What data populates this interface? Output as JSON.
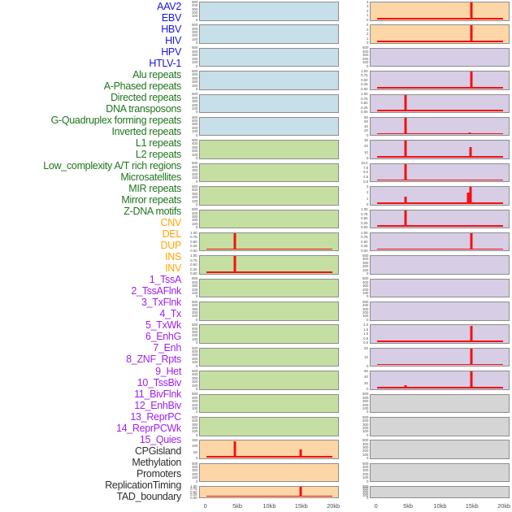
{
  "figure": {
    "colors": {
      "spike": "#f31111",
      "panel_border": "#8d8d8d",
      "tick_text": "#4f4f4f",
      "fills": {
        "virus": "#c7dfe9",
        "repeat": "#c5dfa2",
        "sv": "#fcd6a6",
        "chromatin_state": "#d7cde5",
        "other": "#d5d5d5"
      },
      "label_colors": {
        "virus": "#1a16e3",
        "repeat": "#1e761e",
        "sv": "#ffa500",
        "chromatin_state": "#a020f0",
        "other": "#2e2e2e"
      }
    },
    "default_yticks": [
      "500",
      "400",
      "300",
      "200",
      "100",
      "0"
    ]
  },
  "chart_data": {
    "type": "line",
    "layout": "small_multiples",
    "columns": 2,
    "order": "column_major",
    "x_range_kb": [
      0,
      20
    ],
    "x_ticks": [
      "0",
      "5kb",
      "10kb",
      "15kb",
      "20kb"
    ],
    "grid": false,
    "legend": "none",
    "tracks": [
      {
        "name": "AAV2",
        "group": "virus",
        "column": "left",
        "yticks": null,
        "baseline": false,
        "spikes": []
      },
      {
        "name": "EBV",
        "group": "virus",
        "column": "left",
        "yticks": null,
        "baseline": false,
        "spikes": []
      },
      {
        "name": "HBV",
        "group": "virus",
        "column": "left",
        "yticks": null,
        "baseline": false,
        "spikes": []
      },
      {
        "name": "HIV",
        "group": "virus",
        "column": "left",
        "yticks": null,
        "baseline": false,
        "spikes": []
      },
      {
        "name": "HPV",
        "group": "virus",
        "column": "left",
        "yticks": null,
        "baseline": false,
        "spikes": []
      },
      {
        "name": "HTLV-1",
        "group": "virus",
        "column": "left",
        "yticks": null,
        "baseline": false,
        "spikes": []
      },
      {
        "name": "Alu repeats",
        "group": "repeat",
        "column": "left",
        "yticks": null,
        "baseline": false,
        "spikes": []
      },
      {
        "name": "A-Phased repeats",
        "group": "repeat",
        "column": "left",
        "yticks": null,
        "baseline": false,
        "spikes": []
      },
      {
        "name": "Directed repeats",
        "group": "repeat",
        "column": "left",
        "yticks": null,
        "baseline": false,
        "spikes": []
      },
      {
        "name": "DNA transposons",
        "group": "repeat",
        "column": "left",
        "yticks": null,
        "baseline": false,
        "spikes": []
      },
      {
        "name": "G-Quadruplex forming repeats",
        "group": "repeat",
        "column": "left",
        "yticks": [
          "1.00",
          "0.75",
          "0.50",
          "0.25",
          "0.00"
        ],
        "baseline": true,
        "spikes": [
          {
            "x_kb": 4.6,
            "y": 1.0,
            "h": 1.0
          }
        ]
      },
      {
        "name": "Inverted repeats",
        "group": "repeat",
        "column": "left",
        "yticks": [
          "1.00",
          "0.75",
          "0.50",
          "0.25",
          "0.00"
        ],
        "baseline": true,
        "spikes": [
          {
            "x_kb": 4.6,
            "y": 1.0,
            "h": 1.0
          }
        ]
      },
      {
        "name": "L1 repeats",
        "group": "repeat",
        "column": "left",
        "yticks": null,
        "baseline": false,
        "spikes": []
      },
      {
        "name": "L2 repeats",
        "group": "repeat",
        "column": "left",
        "yticks": null,
        "baseline": false,
        "spikes": []
      },
      {
        "name": "Low_complexity A/T rich regions",
        "group": "repeat",
        "column": "left",
        "yticks": null,
        "baseline": false,
        "spikes": []
      },
      {
        "name": "Microsatellites",
        "group": "repeat",
        "column": "left",
        "yticks": null,
        "baseline": false,
        "spikes": []
      },
      {
        "name": "MIR repeats",
        "group": "repeat",
        "column": "left",
        "yticks": null,
        "baseline": false,
        "spikes": []
      },
      {
        "name": "Mirror repeats",
        "group": "repeat",
        "column": "left",
        "yticks": null,
        "baseline": false,
        "spikes": []
      },
      {
        "name": "Z-DNA motifs",
        "group": "repeat",
        "column": "left",
        "yticks": null,
        "baseline": false,
        "spikes": []
      },
      {
        "name": "CNV",
        "group": "sv",
        "column": "left",
        "yticks": [
          "150",
          "100",
          "50",
          "0"
        ],
        "baseline": true,
        "spikes": [
          {
            "x_kb": 4.6,
            "y": 150,
            "h": 1.0
          },
          {
            "x_kb": 14.9,
            "y": 70,
            "h": 0.47
          }
        ]
      },
      {
        "name": "DEL",
        "group": "sv",
        "column": "left",
        "yticks": null,
        "baseline": false,
        "spikes": []
      },
      {
        "name": "DUP",
        "group": "sv",
        "column": "left",
        "short": true,
        "yticks": [
          "1.00",
          "0.75",
          "0.50",
          "0.25",
          "0.00"
        ],
        "baseline": true,
        "spikes": [
          {
            "x_kb": 15.0,
            "y": 1.0,
            "h": 1.0
          }
        ]
      },
      {
        "name": "INS",
        "group": "sv",
        "column": "right",
        "yticks": [
          "4",
          "3",
          "2",
          "1",
          "0"
        ],
        "baseline": true,
        "spikes": [
          {
            "x_kb": 15.0,
            "y": 4,
            "h": 1.0
          }
        ]
      },
      {
        "name": "INV",
        "group": "sv",
        "column": "right",
        "yticks": [
          "4",
          "3",
          "2",
          "1",
          "0"
        ],
        "baseline": true,
        "spikes": [
          {
            "x_kb": 15.0,
            "y": 4,
            "h": 1.0
          }
        ]
      },
      {
        "name": "1_TssA",
        "group": "chromatin_state",
        "column": "right",
        "yticks": null,
        "baseline": false,
        "spikes": []
      },
      {
        "name": "2_TssAFlnk",
        "group": "chromatin_state",
        "column": "right",
        "yticks": [
          "1.00",
          "0.75",
          "0.50",
          "0.25",
          "0.00"
        ],
        "baseline": true,
        "spikes": [
          {
            "x_kb": 15.0,
            "y": 1.0,
            "h": 1.0
          }
        ]
      },
      {
        "name": "3_TxFlnk",
        "group": "chromatin_state",
        "column": "right",
        "yticks": [
          "1.00",
          "0.75",
          "0.50",
          "0.25",
          "0.00"
        ],
        "baseline": true,
        "spikes": [
          {
            "x_kb": 4.6,
            "y": 1.0,
            "h": 1.0
          }
        ]
      },
      {
        "name": "4_Tx",
        "group": "chromatin_state",
        "column": "right",
        "yticks": [
          "80",
          "60",
          "40",
          "20",
          "0"
        ],
        "baseline": true,
        "spikes": [
          {
            "x_kb": 4.6,
            "y": 80,
            "h": 1.0
          },
          {
            "x_kb": 14.7,
            "y": 8,
            "h": 0.1
          }
        ]
      },
      {
        "name": "5_TxWk",
        "group": "chromatin_state",
        "column": "right",
        "yticks": [
          "30",
          "20",
          "10",
          "0"
        ],
        "baseline": true,
        "spikes": [
          {
            "x_kb": 4.6,
            "y": 30,
            "h": 1.0
          },
          {
            "x_kb": 14.8,
            "y": 20,
            "h": 0.65
          }
        ]
      },
      {
        "name": "6_EnhG",
        "group": "chromatin_state",
        "column": "right",
        "yticks": [
          "10.0",
          "7.5",
          "5.0",
          "2.5",
          "0.0"
        ],
        "baseline": true,
        "spikes": [
          {
            "x_kb": 4.6,
            "y": 10,
            "h": 1.0
          }
        ]
      },
      {
        "name": "7_Enh",
        "group": "chromatin_state",
        "column": "right",
        "yticks": [
          "3",
          "2",
          "1",
          "0"
        ],
        "baseline": true,
        "spikes": [
          {
            "x_kb": 4.6,
            "y": 1.3,
            "h": 0.43
          },
          {
            "x_kb": 14.4,
            "y": 2,
            "h": 0.67
          },
          {
            "x_kb": 14.8,
            "y": 3,
            "h": 1.0
          }
        ]
      },
      {
        "name": "8_ZNF_Rpts",
        "group": "chromatin_state",
        "column": "right",
        "yticks": [
          "1.00",
          "0.75",
          "0.50",
          "0.25",
          "0.00"
        ],
        "baseline": true,
        "spikes": [
          {
            "x_kb": 4.6,
            "y": 1.0,
            "h": 1.0
          }
        ]
      },
      {
        "name": "9_Het",
        "group": "chromatin_state",
        "column": "right",
        "yticks": [
          "1.00",
          "0.75",
          "0.50",
          "0.25",
          "0.00"
        ],
        "baseline": true,
        "spikes": [
          {
            "x_kb": 15.0,
            "y": 1.0,
            "h": 1.0
          }
        ]
      },
      {
        "name": "10_TssBiv",
        "group": "chromatin_state",
        "column": "right",
        "yticks": null,
        "baseline": false,
        "spikes": []
      },
      {
        "name": "11_BivFlnk",
        "group": "chromatin_state",
        "column": "right",
        "yticks": null,
        "baseline": false,
        "spikes": []
      },
      {
        "name": "12_EnhBiv",
        "group": "chromatin_state",
        "column": "right",
        "yticks": null,
        "baseline": false,
        "spikes": []
      },
      {
        "name": "13_ReprPC",
        "group": "chromatin_state",
        "column": "right",
        "yticks": [
          "2.0",
          "1.5",
          "1.0",
          "0.5",
          "0.0"
        ],
        "baseline": true,
        "spikes": [
          {
            "x_kb": 15.0,
            "y": 2.0,
            "h": 1.0
          }
        ]
      },
      {
        "name": "14_ReprPCWk",
        "group": "chromatin_state",
        "column": "right",
        "yticks": [
          "20",
          "10",
          "0"
        ],
        "baseline": true,
        "spikes": [
          {
            "x_kb": 15.0,
            "y": 20,
            "h": 1.0
          }
        ]
      },
      {
        "name": "15_Quies",
        "group": "chromatin_state",
        "column": "right",
        "yticks": [
          "60",
          "40",
          "20",
          "0"
        ],
        "baseline": true,
        "spikes": [
          {
            "x_kb": 4.6,
            "y": 10,
            "h": 0.17
          },
          {
            "x_kb": 15.0,
            "y": 60,
            "h": 1.0
          }
        ]
      },
      {
        "name": "CPGisland",
        "group": "other",
        "column": "right",
        "yticks": null,
        "baseline": false,
        "spikes": []
      },
      {
        "name": "Methylation",
        "group": "other",
        "column": "right",
        "yticks": null,
        "baseline": false,
        "spikes": []
      },
      {
        "name": "Promoters",
        "group": "other",
        "column": "right",
        "yticks": null,
        "baseline": false,
        "spikes": []
      },
      {
        "name": "ReplicationTiming",
        "group": "other",
        "column": "right",
        "yticks": null,
        "baseline": false,
        "spikes": []
      },
      {
        "name": "TAD_boundary",
        "group": "other",
        "column": "right",
        "short": true,
        "yticks": null,
        "baseline": false,
        "spikes": []
      }
    ]
  }
}
